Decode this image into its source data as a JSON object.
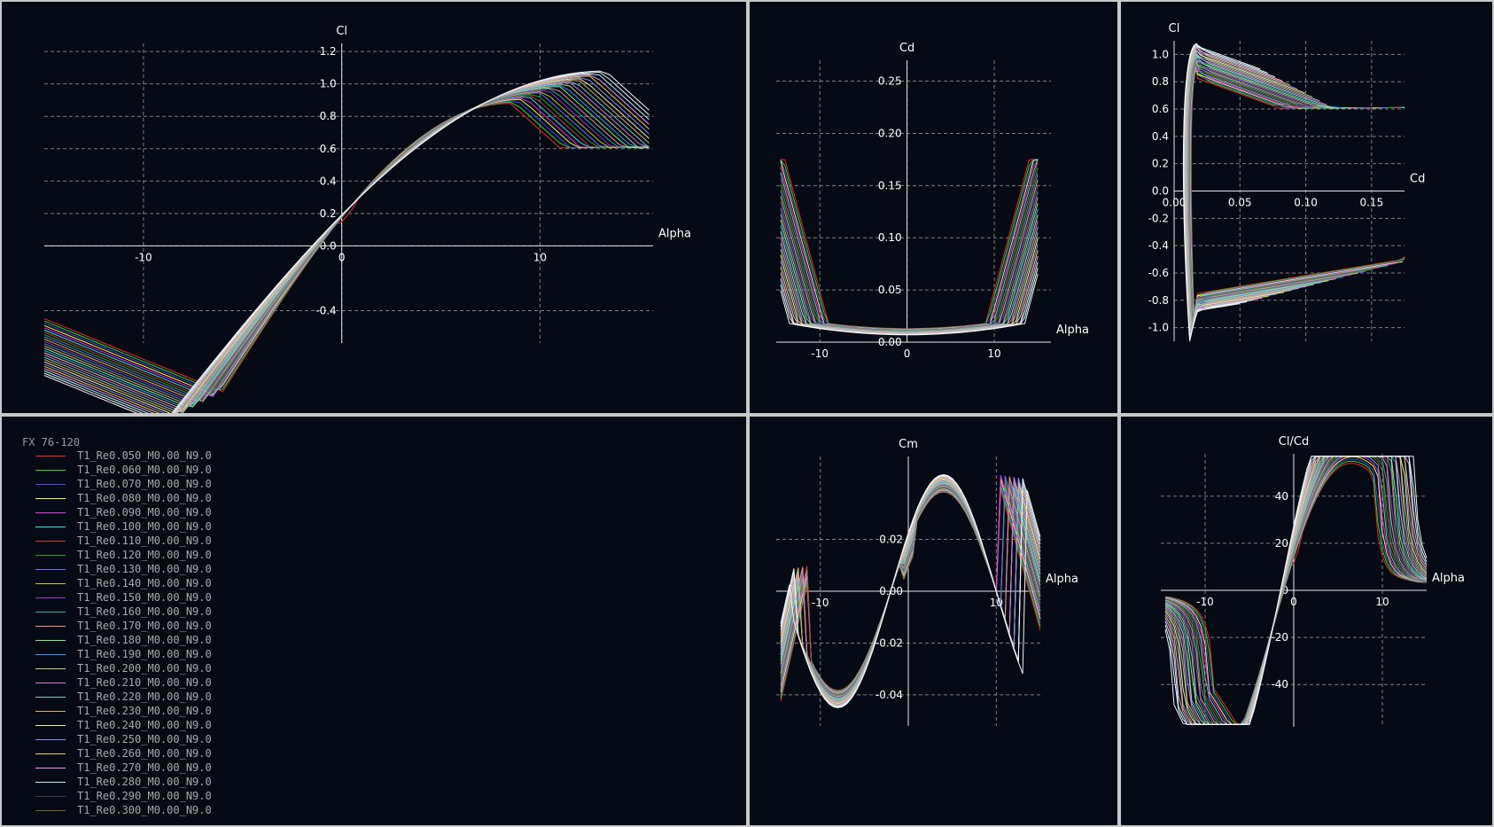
{
  "airfoil_name": "FX 76-120",
  "colors": {
    "background": "#050a14",
    "grid": "#7a7f88",
    "axis": "#e6e6e6",
    "text": "#ffffff",
    "legend_text": "#a8a8a8"
  },
  "series": [
    {
      "name": "T1_Re0.050_M0.00_N9.0",
      "color": "#ff2020"
    },
    {
      "name": "T1_Re0.060_M0.00_N9.0",
      "color": "#20e020"
    },
    {
      "name": "T1_Re0.070_M0.00_N9.0",
      "color": "#3a4cff"
    },
    {
      "name": "T1_Re0.080_M0.00_N9.0",
      "color": "#ffff20"
    },
    {
      "name": "T1_Re0.090_M0.00_N9.0",
      "color": "#ff20ff"
    },
    {
      "name": "T1_Re0.100_M0.00_N9.0",
      "color": "#20e8e8"
    },
    {
      "name": "T1_Re0.110_M0.00_N9.0",
      "color": "#c83a2a"
    },
    {
      "name": "T1_Re0.120_M0.00_N9.0",
      "color": "#20a820"
    },
    {
      "name": "T1_Re0.130_M0.00_N9.0",
      "color": "#6f70ff"
    },
    {
      "name": "T1_Re0.140_M0.00_N9.0",
      "color": "#c8c420"
    },
    {
      "name": "T1_Re0.150_M0.00_N9.0",
      "color": "#a030d0"
    },
    {
      "name": "T1_Re0.160_M0.00_N9.0",
      "color": "#2aa8a8"
    },
    {
      "name": "T1_Re0.170_M0.00_N9.0",
      "color": "#ff8a8a"
    },
    {
      "name": "T1_Re0.180_M0.00_N9.0",
      "color": "#60ff80"
    },
    {
      "name": "T1_Re0.190_M0.00_N9.0",
      "color": "#30a0ff"
    },
    {
      "name": "T1_Re0.200_M0.00_N9.0",
      "color": "#d0d080"
    },
    {
      "name": "T1_Re0.210_M0.00_N9.0",
      "color": "#e070e0"
    },
    {
      "name": "T1_Re0.220_M0.00_N9.0",
      "color": "#70d0c0"
    },
    {
      "name": "T1_Re0.230_M0.00_N9.0",
      "color": "#e0b060"
    },
    {
      "name": "T1_Re0.240_M0.00_N9.0",
      "color": "#f0f0a0"
    },
    {
      "name": "T1_Re0.250_M0.00_N9.0",
      "color": "#8c8cff"
    },
    {
      "name": "T1_Re0.260_M0.00_N9.0",
      "color": "#f0d040"
    },
    {
      "name": "T1_Re0.270_M0.00_N9.0",
      "color": "#ff90ff"
    },
    {
      "name": "T1_Re0.280_M0.00_N9.0",
      "color": "#a0fff0"
    },
    {
      "name": "T1_Re0.290_M0.00_N9.0",
      "color": "#404040"
    },
    {
      "name": "T1_Re0.300_M0.00_N9.0",
      "color": "#806020"
    }
  ],
  "chart_data": [
    {
      "type": "line",
      "id": "lift",
      "xlabel": "Alpha",
      "ylabel": "Cl",
      "xlim": [
        -15,
        15.7
      ],
      "ylim": [
        -0.6,
        1.25
      ],
      "xticks": [
        -10,
        0,
        10
      ],
      "yticks": [
        -0.4,
        0.0,
        0.2,
        0.4,
        0.6,
        0.8,
        1.0,
        1.2
      ],
      "grid": true
    },
    {
      "type": "line",
      "id": "drag",
      "xlabel": "Alpha",
      "ylabel": "Cd",
      "xlim": [
        -15,
        16.5
      ],
      "ylim": [
        0.0,
        0.27
      ],
      "xticks": [
        -10,
        0,
        10
      ],
      "yticks": [
        0.0,
        0.05,
        0.1,
        0.15,
        0.2,
        0.25
      ],
      "grid": true
    },
    {
      "type": "line",
      "id": "polar",
      "xlabel": "Cd",
      "ylabel": "Cl",
      "xlim": [
        0.0,
        0.175
      ],
      "ylim": [
        -1.1,
        1.1
      ],
      "xticks": [
        0.0,
        0.05,
        0.1,
        0.15
      ],
      "yticks": [
        -1.0,
        -0.8,
        -0.6,
        -0.4,
        -0.2,
        0.0,
        0.2,
        0.4,
        0.6,
        0.8,
        1.0
      ],
      "grid": true
    },
    {
      "type": "line",
      "id": "cm",
      "xlabel": "Alpha",
      "ylabel": "Cm",
      "xlim": [
        -15,
        15
      ],
      "ylim": [
        -0.052,
        0.052
      ],
      "xticks": [
        -10,
        10
      ],
      "yticks": [
        -0.04,
        -0.02,
        0.0,
        0.02
      ],
      "grid": true
    },
    {
      "type": "line",
      "id": "clcd",
      "xlabel": "Alpha",
      "ylabel": "Cl/Cd",
      "xlim": [
        -15,
        15
      ],
      "ylim": [
        -58,
        58
      ],
      "xticks": [
        -10,
        0,
        10
      ],
      "yticks": [
        -40,
        -20,
        0,
        20,
        40
      ],
      "grid": true
    }
  ]
}
